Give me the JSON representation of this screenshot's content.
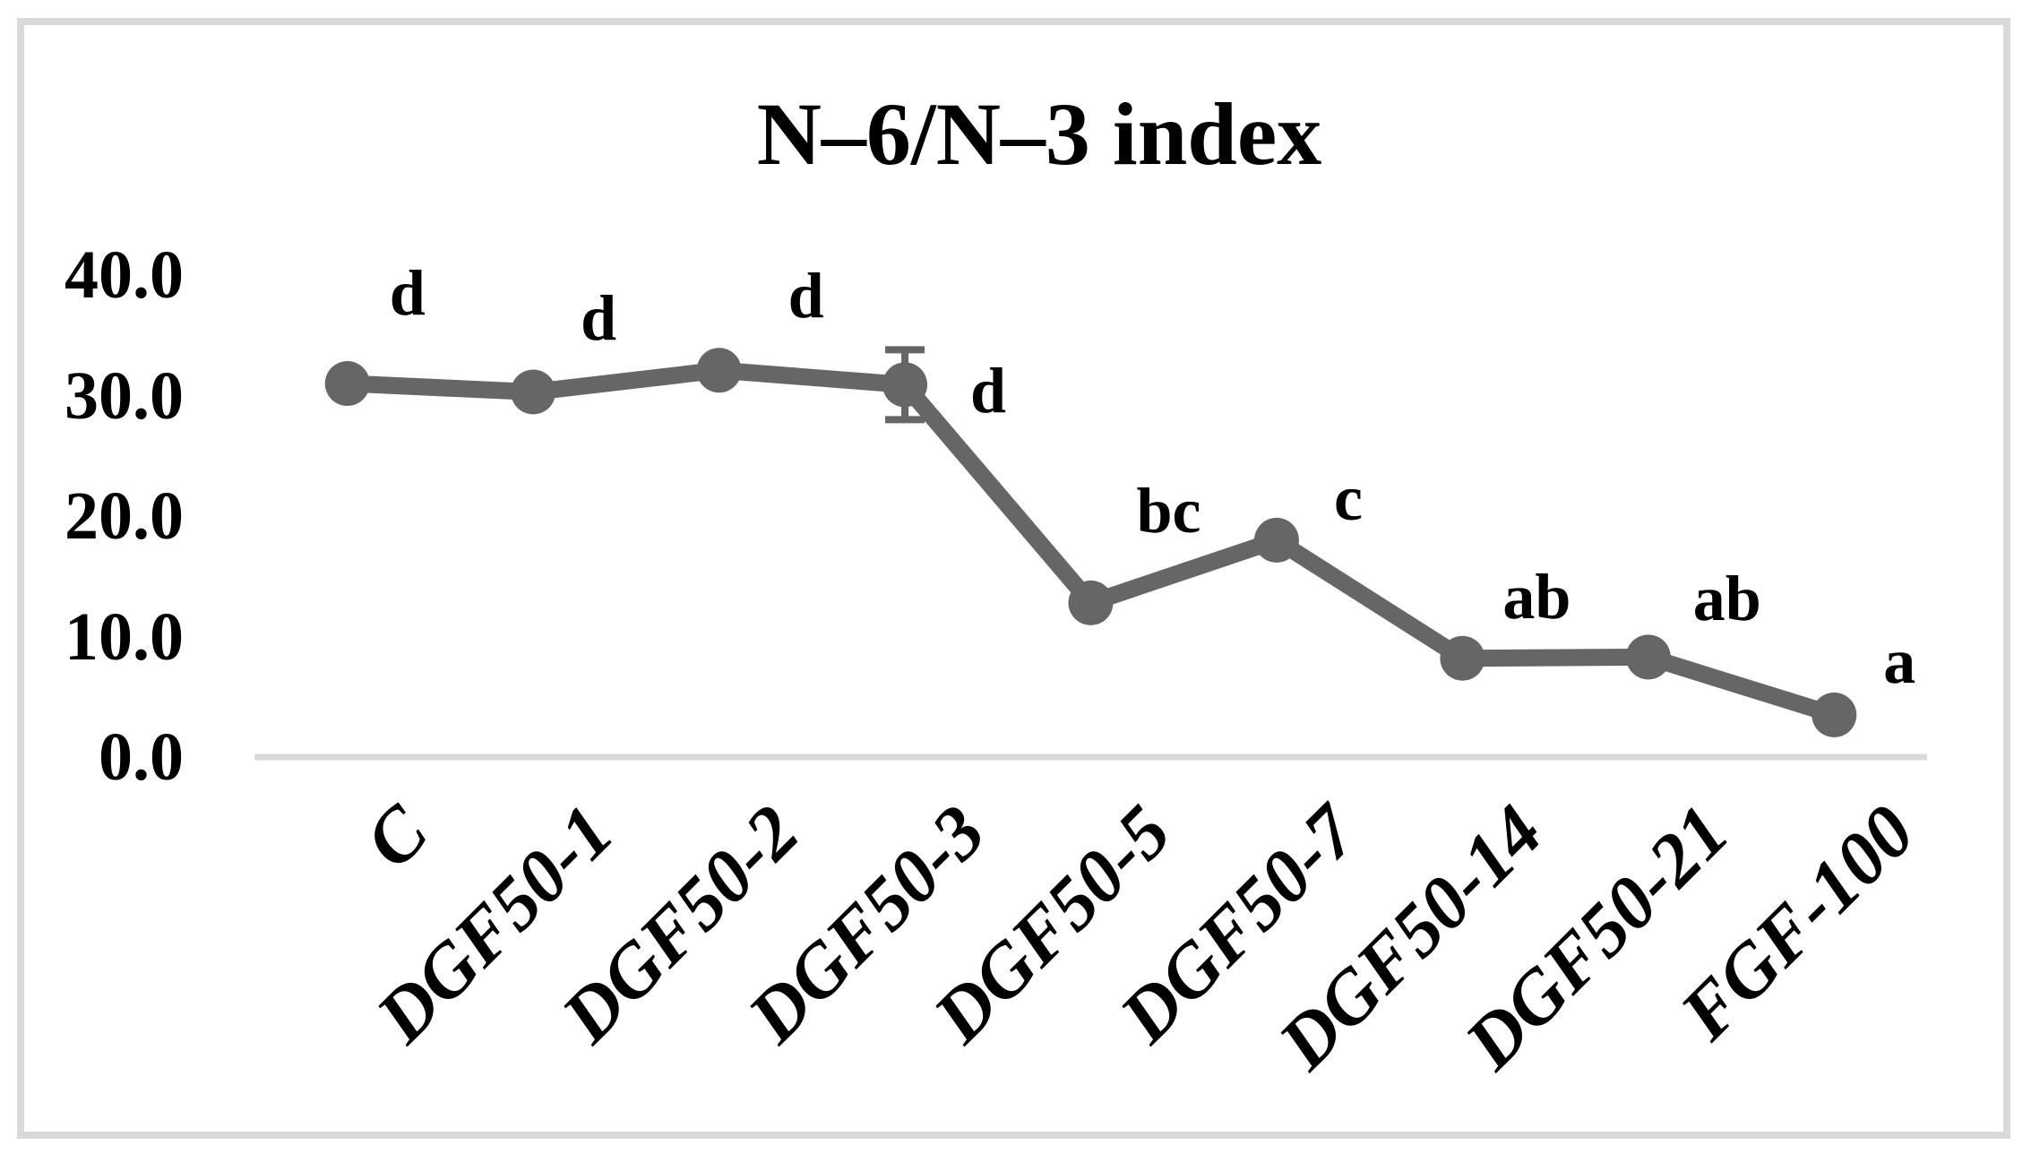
{
  "chart_data": {
    "type": "line",
    "title": "N–6/N–3 index",
    "categories": [
      "C",
      "DGF50-1",
      "DGF50-2",
      "DGF50-3",
      "DGF50-5",
      "DGF50-7",
      "DGF50-14",
      "DGF50-21",
      "FGF-100"
    ],
    "values": [
      31.0,
      30.3,
      32.1,
      30.9,
      12.8,
      18.0,
      8.2,
      8.3,
      3.5
    ],
    "significance_letters": [
      "d",
      "d",
      "d",
      "d",
      "bc",
      "c",
      "ab",
      "ab",
      "a"
    ],
    "error_bars": [
      null,
      null,
      null,
      2.9,
      null,
      null,
      null,
      null,
      null
    ],
    "xlabel": "",
    "ylabel": "",
    "ylim": [
      0,
      40
    ],
    "ytick_values": [
      40,
      30,
      20,
      10,
      0
    ],
    "ytick_labels": [
      "40.0",
      "30.0",
      "20.0",
      "10.0",
      "0.0"
    ],
    "grid": false,
    "legend": false,
    "marker": "circle",
    "colors": {
      "series": "#666666",
      "axis_line": "#d9d9d9",
      "chart_border": "#d9d9d9",
      "text": "#000000",
      "background": "#ffffff"
    }
  }
}
